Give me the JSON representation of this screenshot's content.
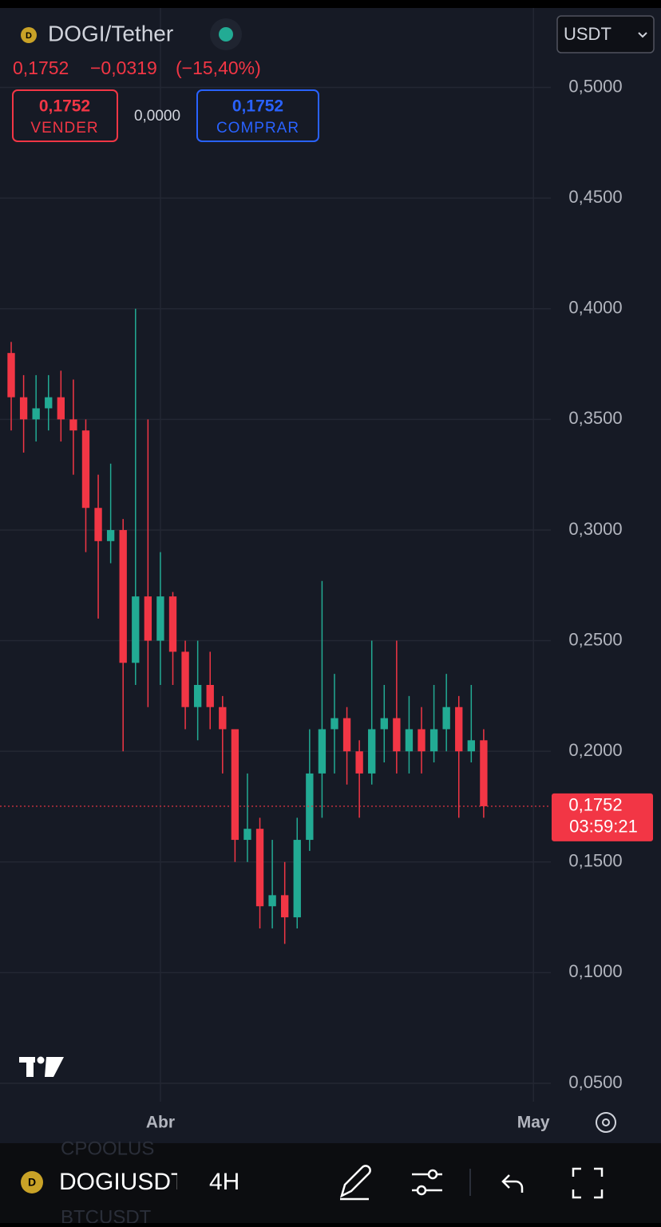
{
  "header": {
    "symbol": "DOGI/Tether",
    "price": "0,1752",
    "change": "−0,0319",
    "change_pct": "(−15,40%)",
    "sell_price": "0,1752",
    "sell_label": "VENDER",
    "spread": "0,0000",
    "buy_price": "0,1752",
    "buy_label": "COMPRAR",
    "currency": "USDT"
  },
  "chart_data": {
    "type": "candlestick",
    "x": [
      -12,
      -11,
      -10,
      -9,
      -8,
      -7,
      -6,
      -5,
      -4,
      -3,
      -2,
      -1,
      0,
      1,
      2,
      3,
      4,
      5,
      6,
      7,
      8,
      9,
      10,
      11,
      12,
      13,
      14,
      15,
      16,
      17,
      18,
      19,
      20,
      21,
      22,
      23,
      24,
      25,
      26
    ],
    "open": [
      0.38,
      0.36,
      0.35,
      0.355,
      0.36,
      0.35,
      0.345,
      0.31,
      0.295,
      0.3,
      0.24,
      0.27,
      0.25,
      0.27,
      0.245,
      0.22,
      0.23,
      0.22,
      0.21,
      0.16,
      0.165,
      0.13,
      0.135,
      0.125,
      0.16,
      0.19,
      0.21,
      0.215,
      0.2,
      0.19,
      0.21,
      0.215,
      0.2,
      0.21,
      0.2,
      0.21,
      0.22,
      0.2,
      0.205
    ],
    "high": [
      0.385,
      0.37,
      0.37,
      0.37,
      0.372,
      0.368,
      0.35,
      0.325,
      0.33,
      0.305,
      0.4,
      0.35,
      0.29,
      0.272,
      0.25,
      0.25,
      0.245,
      0.225,
      0.21,
      0.19,
      0.17,
      0.16,
      0.15,
      0.17,
      0.21,
      0.277,
      0.235,
      0.22,
      0.205,
      0.25,
      0.23,
      0.25,
      0.225,
      0.22,
      0.23,
      0.235,
      0.225,
      0.23,
      0.21
    ],
    "low": [
      0.345,
      0.335,
      0.34,
      0.345,
      0.34,
      0.325,
      0.29,
      0.26,
      0.285,
      0.2,
      0.23,
      0.22,
      0.23,
      0.23,
      0.21,
      0.205,
      0.21,
      0.19,
      0.15,
      0.15,
      0.12,
      0.12,
      0.113,
      0.12,
      0.155,
      0.17,
      0.19,
      0.185,
      0.17,
      0.185,
      0.195,
      0.19,
      0.19,
      0.19,
      0.195,
      0.2,
      0.17,
      0.195,
      0.17
    ],
    "close": [
      0.36,
      0.35,
      0.355,
      0.36,
      0.35,
      0.345,
      0.31,
      0.295,
      0.3,
      0.24,
      0.27,
      0.25,
      0.27,
      0.245,
      0.22,
      0.23,
      0.22,
      0.21,
      0.16,
      0.165,
      0.13,
      0.135,
      0.125,
      0.16,
      0.19,
      0.21,
      0.215,
      0.2,
      0.19,
      0.21,
      0.215,
      0.2,
      0.21,
      0.2,
      0.21,
      0.22,
      0.2,
      0.205,
      0.1752
    ],
    "up_color": "#22ab94",
    "down_color": "#f23645",
    "xlim": [
      -12.9,
      31.4
    ],
    "xticks": [
      {
        "value": 0,
        "label": "Abr"
      },
      {
        "value": 30,
        "label": "May"
      }
    ],
    "ylim": [
      0.0417,
      0.5359
    ],
    "yticks": [
      {
        "value": 0.05,
        "label": "0,0500"
      },
      {
        "value": 0.1,
        "label": "0,1000"
      },
      {
        "value": 0.15,
        "label": "0,1500"
      },
      {
        "value": 0.2,
        "label": "0,2000"
      },
      {
        "value": 0.25,
        "label": "0,2500"
      },
      {
        "value": 0.3,
        "label": "0,3000"
      },
      {
        "value": 0.35,
        "label": "0,3500"
      },
      {
        "value": 0.4,
        "label": "0,4000"
      },
      {
        "value": 0.45,
        "label": "0,4500"
      },
      {
        "value": 0.5,
        "label": "0,5000"
      }
    ],
    "grid": true,
    "last_price": {
      "value": 0.1752,
      "label": "0,1752"
    },
    "countdown": "03:59:21"
  },
  "toolbar": {
    "symbol": "DOGIUSDT",
    "interval": "4H",
    "watchlist_above": "CPOOLUS",
    "watchlist_below": "BTCUSDT"
  }
}
